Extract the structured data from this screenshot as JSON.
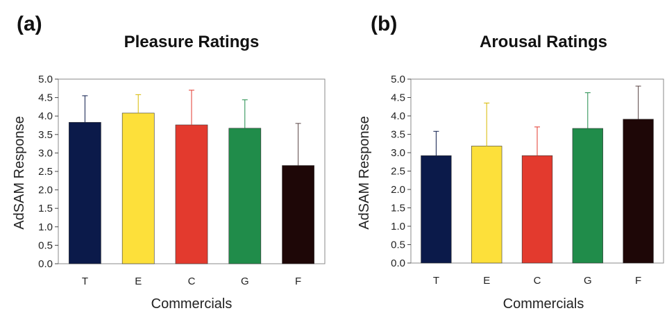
{
  "chart_data": [
    {
      "type": "bar",
      "panel_label": "(a)",
      "title": "Pleasure Ratings",
      "xlabel": "Commercials",
      "ylabel": "AdSAM Response",
      "ylim": [
        0,
        5
      ],
      "yticks": [
        "0.0",
        "0.5",
        "1.0",
        "1.5",
        "2.0",
        "2.5",
        "3.0",
        "3.5",
        "4.0",
        "4.5",
        "5.0"
      ],
      "categories": [
        "T",
        "E",
        "C",
        "G",
        "F"
      ],
      "values": [
        3.83,
        4.08,
        3.76,
        3.67,
        2.66
      ],
      "error_upper": [
        4.55,
        4.58,
        4.7,
        4.44,
        3.8
      ],
      "colors": [
        "#0b1a4a",
        "#fde03a",
        "#e33a2e",
        "#208c4a",
        "#1e0707"
      ],
      "grid": false
    },
    {
      "type": "bar",
      "panel_label": "(b)",
      "title": "Arousal Ratings",
      "xlabel": "Commercials",
      "ylabel": "AdSAM Response",
      "ylim": [
        0,
        5
      ],
      "yticks": [
        "0.0",
        "0.5",
        "1.0",
        "1.5",
        "2.0",
        "2.5",
        "3.0",
        "3.5",
        "4.0",
        "4.5",
        "5.0"
      ],
      "categories": [
        "T",
        "E",
        "C",
        "G",
        "F"
      ],
      "values": [
        2.92,
        3.18,
        2.92,
        3.66,
        3.91
      ],
      "error_upper": [
        3.58,
        4.35,
        3.7,
        4.63,
        4.81
      ],
      "colors": [
        "#0b1a4a",
        "#fde03a",
        "#e33a2e",
        "#208c4a",
        "#1e0707"
      ],
      "grid": false
    }
  ]
}
